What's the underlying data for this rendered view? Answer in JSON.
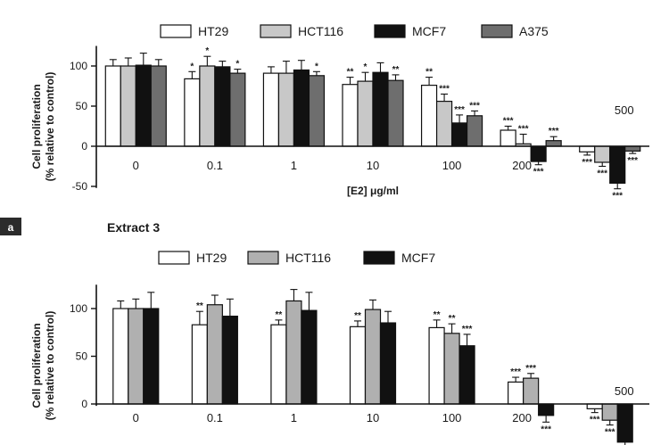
{
  "chart_data": [
    {
      "type": "bar",
      "panel_label": "a",
      "categories": [
        "0",
        "0.1",
        "1",
        "10",
        "100",
        "200",
        "500"
      ],
      "xlabel": "[E2] μg/ml",
      "ylabel_line1": "Cell proliferation",
      "ylabel_line2": "(% relative to control)",
      "ylim": [
        -60,
        125
      ],
      "yticks": [
        -50,
        0,
        50,
        100
      ],
      "series": [
        {
          "name": "HT29",
          "color": "#ffffff",
          "values": [
            100,
            84,
            91,
            77,
            76,
            20,
            -7
          ],
          "errors": [
            8,
            9,
            8,
            9,
            10,
            5,
            4
          ],
          "stars": [
            "",
            "*",
            "",
            "**",
            "**",
            "***",
            "***"
          ]
        },
        {
          "name": "HCT116",
          "color": "#c8c8c8",
          "values": [
            100,
            100,
            91,
            81,
            56,
            3,
            -20
          ],
          "errors": [
            10,
            12,
            15,
            11,
            9,
            12,
            5
          ],
          "stars": [
            "",
            "*",
            "",
            "*",
            "***",
            "***",
            "***"
          ]
        },
        {
          "name": "MCF7",
          "color": "#111111",
          "values": [
            101,
            99,
            95,
            92,
            29,
            -19,
            -46
          ],
          "errors": [
            15,
            7,
            12,
            12,
            10,
            4,
            7
          ],
          "stars": [
            "",
            "",
            "",
            "",
            "***",
            "***",
            "***"
          ]
        },
        {
          "name": "A375",
          "color": "#6e6e6e",
          "values": [
            100,
            91,
            88,
            82,
            38,
            7,
            -6
          ],
          "errors": [
            8,
            5,
            5,
            7,
            6,
            5,
            3
          ],
          "stars": [
            "",
            "*",
            "*",
            "**",
            "***",
            "***",
            "***"
          ]
        }
      ]
    },
    {
      "type": "bar",
      "title": "Extract 3",
      "categories": [
        "0",
        "0.1",
        "1",
        "10",
        "100",
        "200",
        "500"
      ],
      "ylabel_line1": "Cell proliferation",
      "ylabel_line2": "(% relative to control)",
      "ylim": [
        -60,
        125
      ],
      "yticks": [
        0,
        50,
        100
      ],
      "series": [
        {
          "name": "HT29",
          "color": "#ffffff",
          "values": [
            100,
            83,
            83,
            81,
            80,
            23,
            -5
          ],
          "errors": [
            8,
            14,
            5,
            6,
            8,
            5,
            4
          ],
          "stars": [
            "",
            "**",
            "**",
            "**",
            "**",
            "***",
            "***"
          ]
        },
        {
          "name": "HCT116",
          "color": "#b0b0b0",
          "values": [
            100,
            104,
            108,
            99,
            74,
            27,
            -17
          ],
          "errors": [
            10,
            10,
            12,
            10,
            10,
            5,
            5
          ],
          "stars": [
            "",
            "",
            "",
            "",
            "**",
            "***",
            "***"
          ]
        },
        {
          "name": "MCF7",
          "color": "#111111",
          "values": [
            100,
            92,
            98,
            85,
            61,
            -12,
            -40
          ],
          "errors": [
            17,
            18,
            19,
            12,
            12,
            7,
            6
          ],
          "stars": [
            "",
            "",
            "",
            "",
            "***",
            "***",
            "***"
          ]
        }
      ]
    }
  ]
}
